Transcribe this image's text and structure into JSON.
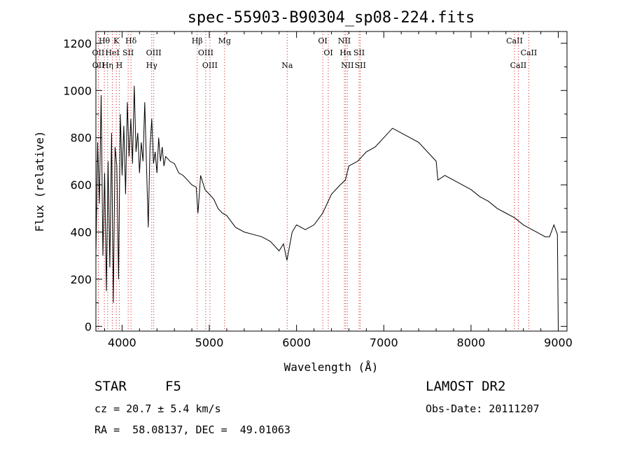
{
  "chart_data": {
    "type": "line",
    "title": "spec-55903-B90304_sp08-224.fits",
    "xlabel": "Wavelength (Å)",
    "ylabel": "Flux (relative)",
    "xlim": [
      3700,
      9100
    ],
    "ylim": [
      -20,
      1250
    ],
    "xticks": [
      4000,
      5000,
      6000,
      7000,
      8000,
      9000
    ],
    "yticks": [
      0,
      200,
      400,
      600,
      800,
      1000,
      1200
    ],
    "grid": false,
    "line_color": "#000000",
    "marker_color": "#d01818",
    "series": [
      {
        "x": [
          3700,
          3720,
          3740,
          3760,
          3780,
          3800,
          3820,
          3840,
          3860,
          3880,
          3900,
          3920,
          3940,
          3960,
          3980,
          4000,
          4020,
          4040,
          4060,
          4080,
          4100,
          4120,
          4140,
          4160,
          4180,
          4200,
          4220,
          4240,
          4260,
          4280,
          4300,
          4320,
          4340,
          4360,
          4380,
          4400,
          4420,
          4440,
          4460,
          4480,
          4500,
          4550,
          4600,
          4650,
          4700,
          4750,
          4800,
          4850,
          4870,
          4900,
          4950,
          5000,
          5050,
          5100,
          5150,
          5200,
          5300,
          5400,
          5500,
          5600,
          5700,
          5800,
          5850,
          5890,
          5950,
          6000,
          6100,
          6200,
          6300,
          6400,
          6500,
          6560,
          6600,
          6700,
          6800,
          6900,
          7000,
          7100,
          7200,
          7300,
          7400,
          7500,
          7600,
          7620,
          7700,
          7800,
          7900,
          8000,
          8100,
          8200,
          8300,
          8400,
          8500,
          8600,
          8700,
          8800,
          8850,
          8900,
          8950,
          8990,
          9000
        ],
        "y": [
          300,
          780,
          520,
          980,
          300,
          650,
          150,
          700,
          250,
          820,
          100,
          760,
          680,
          200,
          900,
          640,
          850,
          560,
          950,
          720,
          880,
          690,
          1020,
          740,
          820,
          650,
          780,
          700,
          950,
          680,
          420,
          760,
          880,
          690,
          740,
          650,
          800,
          700,
          760,
          680,
          720,
          700,
          690,
          650,
          640,
          620,
          600,
          590,
          480,
          640,
          580,
          560,
          540,
          500,
          480,
          470,
          420,
          400,
          390,
          380,
          360,
          320,
          350,
          280,
          400,
          430,
          410,
          430,
          480,
          560,
          600,
          620,
          680,
          700,
          740,
          760,
          800,
          840,
          820,
          800,
          780,
          740,
          700,
          620,
          640,
          620,
          600,
          580,
          550,
          530,
          500,
          480,
          460,
          430,
          410,
          390,
          380,
          380,
          430,
          390,
          0
        ]
      }
    ],
    "spectral_lines": [
      {
        "label": "Hθ",
        "x": 3797,
        "row": 1
      },
      {
        "label": "K",
        "x": 3934,
        "row": 1
      },
      {
        "label": "Hδ",
        "x": 4102,
        "row": 1
      },
      {
        "label": "Hβ",
        "x": 4861,
        "row": 1
      },
      {
        "label": "Mg",
        "x": 5175,
        "row": 1
      },
      {
        "label": "OI",
        "x": 6300,
        "row": 1
      },
      {
        "label": "NII",
        "x": 6548,
        "row": 1
      },
      {
        "label": "CaII",
        "x": 8498,
        "row": 1
      },
      {
        "label": "OII",
        "x": 3727,
        "row": 2
      },
      {
        "label": "HeI",
        "x": 3889,
        "row": 2
      },
      {
        "label": "SII",
        "x": 4070,
        "row": 2
      },
      {
        "label": "OIII",
        "x": 4363,
        "row": 2
      },
      {
        "label": "OIII",
        "x": 4959,
        "row": 2
      },
      {
        "label": "OI",
        "x": 6364,
        "row": 2
      },
      {
        "label": "Hα",
        "x": 6563,
        "row": 2
      },
      {
        "label": "SII",
        "x": 6717,
        "row": 2
      },
      {
        "label": "CaII",
        "x": 8662,
        "row": 2
      },
      {
        "label": "OII",
        "x": 3729,
        "row": 3
      },
      {
        "label": "Hη",
        "x": 3835,
        "row": 3
      },
      {
        "label": "H",
        "x": 3968,
        "row": 3
      },
      {
        "label": "Hγ",
        "x": 4340,
        "row": 3
      },
      {
        "label": "OIII",
        "x": 5007,
        "row": 3
      },
      {
        "label": "Na",
        "x": 5893,
        "row": 3
      },
      {
        "label": "NII",
        "x": 6583,
        "row": 3
      },
      {
        "label": "SII",
        "x": 6731,
        "row": 3
      },
      {
        "label": "CaII",
        "x": 8542,
        "row": 3
      }
    ]
  },
  "info": {
    "class": "STAR",
    "subclass": "F5",
    "survey": "LAMOST DR2",
    "cz": "cz = 20.7 ± 5.4 km/s",
    "obs_date": "Obs-Date: 20111207",
    "coords": "RA =  58.08137, DEC =  49.01063"
  }
}
